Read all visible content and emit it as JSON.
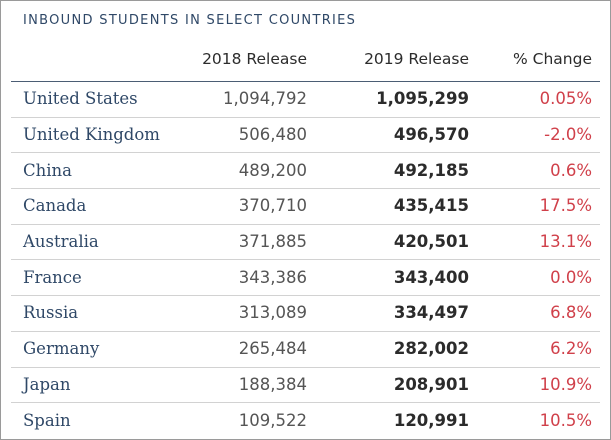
{
  "title": "INBOUND STUDENTS IN SELECT COUNTRIES",
  "columns": {
    "release_2018": "2018 Release",
    "release_2019": "2019 Release",
    "change": "% Change"
  },
  "colors": {
    "title": "#2f4867",
    "country": "#2f4867",
    "change": "#d0404a",
    "header_rule": "#4b5d74",
    "row_divider": "#d2d2d2"
  },
  "rows": [
    {
      "country": "United States",
      "release_2018": "1,094,792",
      "release_2019": "1,095,299",
      "change": "0.05%"
    },
    {
      "country": "United Kingdom",
      "release_2018": "506,480",
      "release_2019": "496,570",
      "change": "-2.0%"
    },
    {
      "country": "China",
      "release_2018": "489,200",
      "release_2019": "492,185",
      "change": "0.6%"
    },
    {
      "country": "Canada",
      "release_2018": "370,710",
      "release_2019": "435,415",
      "change": "17.5%"
    },
    {
      "country": "Australia",
      "release_2018": "371,885",
      "release_2019": "420,501",
      "change": "13.1%"
    },
    {
      "country": "France",
      "release_2018": "343,386",
      "release_2019": "343,400",
      "change": "0.0%"
    },
    {
      "country": "Russia",
      "release_2018": "313,089",
      "release_2019": "334,497",
      "change": "6.8%"
    },
    {
      "country": "Germany",
      "release_2018": "265,484",
      "release_2019": "282,002",
      "change": "6.2%"
    },
    {
      "country": "Japan",
      "release_2018": "188,384",
      "release_2019": "208,901",
      "change": "10.9%"
    },
    {
      "country": "Spain",
      "release_2018": "109,522",
      "release_2019": "120,991",
      "change": "10.5%"
    }
  ]
}
